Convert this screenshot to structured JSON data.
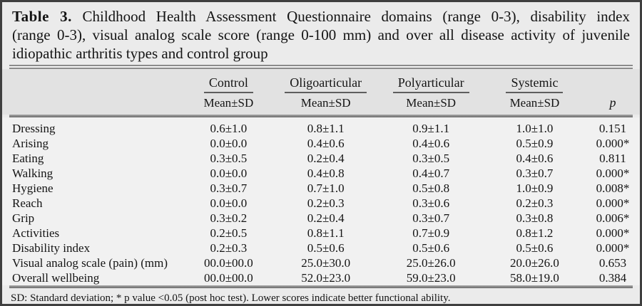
{
  "title": {
    "label": "Table 3.",
    "line1_rest": " Childhood Health Assessment Questionnaire domains (range 0-3), disability index",
    "line2": "(range 0-3), visual analog scale score (range 0-100 mm) and over all disease activity of juvenile",
    "line3": "idiopathic arthritis types and control group"
  },
  "table": {
    "groups": [
      {
        "label": "Control",
        "sublabel": "Mean±SD"
      },
      {
        "label": "Oligoarticular",
        "sublabel": "Mean±SD"
      },
      {
        "label": "Polyarticular",
        "sublabel": "Mean±SD"
      },
      {
        "label": "Systemic",
        "sublabel": "Mean±SD"
      }
    ],
    "p_label": "p",
    "rows": [
      {
        "label": "Dressing",
        "control": "0.6±1.0",
        "oligoarticular": "0.8±1.1",
        "polyarticular": "0.9±1.1",
        "systemic": "1.0±1.0",
        "p": "0.151"
      },
      {
        "label": "Arising",
        "control": "0.0±0.0",
        "oligoarticular": "0.4±0.6",
        "polyarticular": "0.4±0.6",
        "systemic": "0.5±0.9",
        "p": "0.000*"
      },
      {
        "label": "Eating",
        "control": "0.3±0.5",
        "oligoarticular": "0.2±0.4",
        "polyarticular": "0.3±0.5",
        "systemic": "0.4±0.6",
        "p": "0.811"
      },
      {
        "label": "Walking",
        "control": "0.0±0.0",
        "oligoarticular": "0.4±0.8",
        "polyarticular": "0.4±0.7",
        "systemic": "0.3±0.7",
        "p": "0.000*"
      },
      {
        "label": "Hygiene",
        "control": "0.3±0.7",
        "oligoarticular": "0.7±1.0",
        "polyarticular": "0.5±0.8",
        "systemic": "1.0±0.9",
        "p": "0.008*"
      },
      {
        "label": "Reach",
        "control": "0.0±0.0",
        "oligoarticular": "0.2±0.3",
        "polyarticular": "0.3±0.6",
        "systemic": "0.2±0.3",
        "p": "0.000*"
      },
      {
        "label": "Grip",
        "control": "0.3±0.2",
        "oligoarticular": "0.2±0.4",
        "polyarticular": "0.3±0.7",
        "systemic": "0.3±0.8",
        "p": "0.006*"
      },
      {
        "label": "Activities",
        "control": "0.2±0.5",
        "oligoarticular": "0.8±1.1",
        "polyarticular": "0.7±0.9",
        "systemic": "0.8±1.2",
        "p": "0.000*"
      },
      {
        "label": "Disability index",
        "control": "0.2±0.3",
        "oligoarticular": "0.5±0.6",
        "polyarticular": "0.5±0.6",
        "systemic": "0.5±0.6",
        "p": "0.000*"
      },
      {
        "label": "Visual analog scale (pain) (mm)",
        "control": "00.0±00.0",
        "oligoarticular": "25.0±30.0",
        "polyarticular": "25.0±26.0",
        "systemic": "20.0±26.0",
        "p": "0.653"
      },
      {
        "label": "Overall wellbeing",
        "control": "00.0±00.0",
        "oligoarticular": "52.0±23.0",
        "polyarticular": "59.0±23.0",
        "systemic": "58.0±19.0",
        "p": "0.384"
      }
    ]
  },
  "footnote": "SD: Standard deviation; * p value <0.05 (post hoc test). Lower scores indicate better functional ability."
}
